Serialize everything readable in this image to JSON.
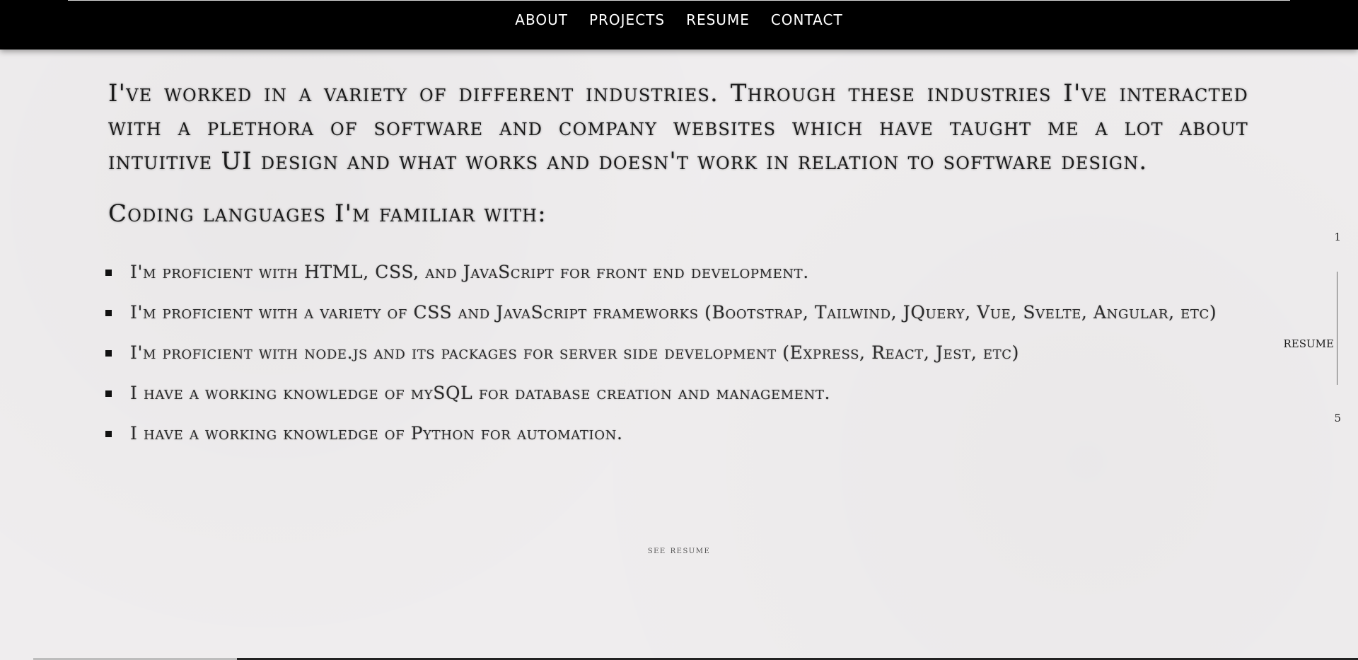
{
  "nav": {
    "items": [
      {
        "label": "ABOUT"
      },
      {
        "label": "PROJECTS"
      },
      {
        "label": "RESUME"
      },
      {
        "label": "CONTACT"
      }
    ]
  },
  "main": {
    "intro": "I've worked in a variety of different industries. Through these industries I've interacted with a plethora of software and company websites which have taught me a lot about intuitive UI design and what works and doesn't work in relation to software design.",
    "languages_heading": "Coding languages I'm familiar with:",
    "languages": [
      "I'm proficient with HTML, CSS, and JavaScript for front end development.",
      "I'm proficient with a variety of CSS and JavaScript frameworks (Bootstrap, Tailwind, JQuery, Vue, Svelte, Angular, etc)",
      "I'm proficient with node.js and its packages for server side development (Express, React, Jest, etc)",
      "I have a working knowledge of mySQL for database creation and management.",
      "I have a working knowledge of Python for automation."
    ],
    "see_resume": "see resume"
  },
  "pager": {
    "start": "1",
    "current": "RESUME",
    "end": "5"
  }
}
